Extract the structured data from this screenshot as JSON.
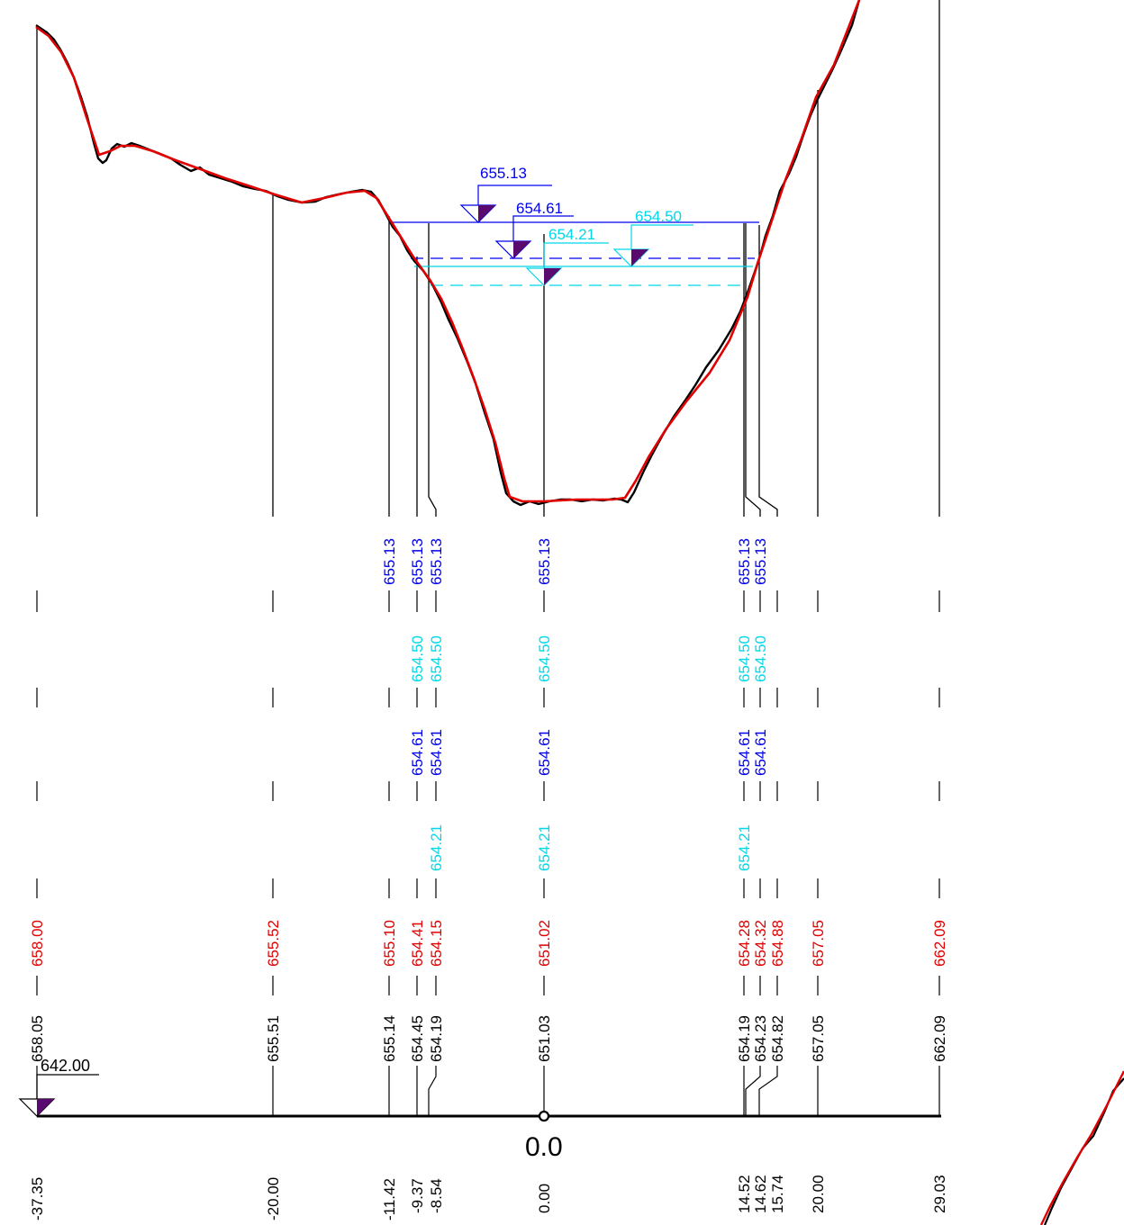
{
  "profile": {
    "colors": {
      "ground": "#000000",
      "design": "#e00000",
      "wl_blue": "#0000ee",
      "wl_cyan": "#00d8ea",
      "marker_fill": "#5a0a6e",
      "text_black": "#000000",
      "text_red": "#e00000"
    },
    "levels": {
      "wl1": "655.13",
      "wl2": "654.61",
      "wl3": "654.50",
      "wl4": "654.21",
      "datum": "642.00"
    },
    "center_label": "0.0",
    "rows": {
      "blue1": [
        "655.13",
        "655.13",
        "655.13",
        "655.13",
        "655.13",
        "655.13"
      ],
      "cyan1": [
        "654.50",
        "654.50",
        "654.50",
        "654.50",
        "654.50"
      ],
      "blue2": [
        "654.61",
        "654.61",
        "654.61",
        "654.61",
        "654.61"
      ],
      "cyan2": [
        "654.21",
        "654.21",
        "654.21"
      ],
      "design": [
        "658.00",
        "655.52",
        "655.10",
        "654.41",
        "654.15",
        "651.02",
        "654.28",
        "654.32",
        "654.88",
        "657.05",
        "662.09"
      ],
      "ground": [
        "658.05",
        "655.51",
        "655.14",
        "654.45",
        "654.19",
        "651.03",
        "654.19",
        "654.23",
        "654.82",
        "657.05",
        "662.09"
      ],
      "station": [
        "-37.35",
        "-20.00",
        "-11.42",
        "-9.37",
        "-8.54",
        "0.00",
        "14.52",
        "14.62",
        "15.74",
        "20.00",
        "29.03"
      ]
    }
  }
}
